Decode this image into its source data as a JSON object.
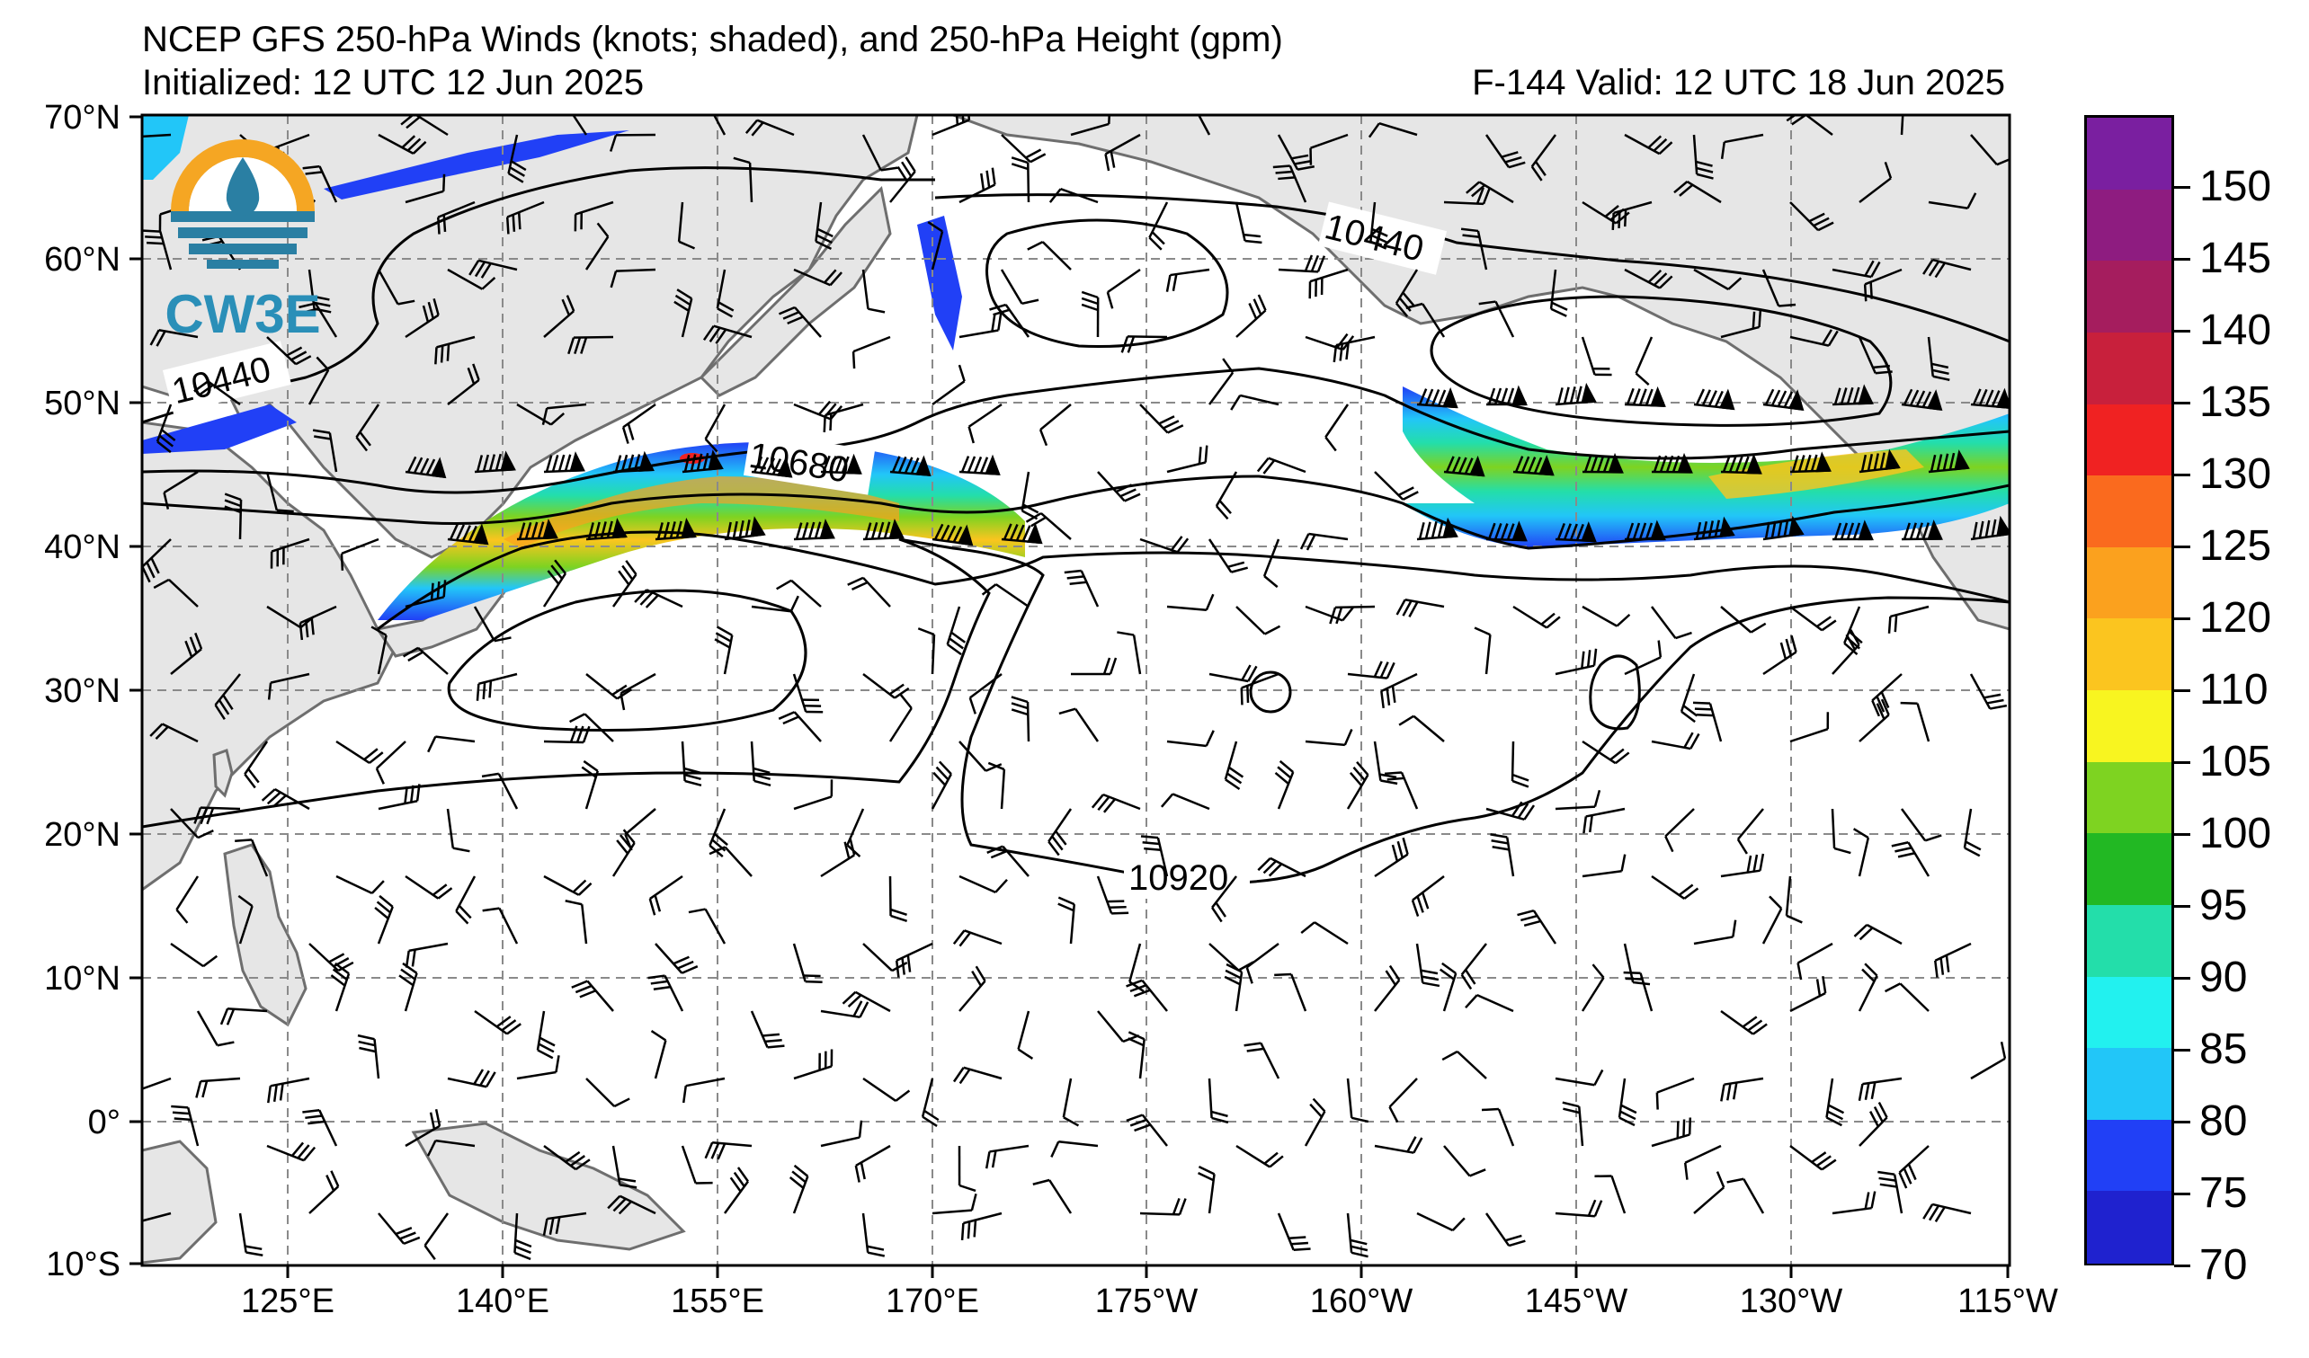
{
  "title": "NCEP GFS 250-hPa Winds (knots; shaded), and 250-hPa Height (gpm)",
  "initialized": "Initialized: 12 UTC 12 Jun 2025",
  "valid": "F-144  Valid: 12 UTC 18 Jun 2025",
  "logo_text": "CW3E",
  "map": {
    "lon_ticks": [
      "125°E",
      "140°E",
      "155°E",
      "170°E",
      "175°W",
      "160°W",
      "145°W",
      "130°W",
      "115°W"
    ],
    "lat_ticks": [
      "70°N",
      "60°N",
      "50°N",
      "40°N",
      "30°N",
      "20°N",
      "10°N",
      "0°",
      "10°S"
    ],
    "contour_labels": [
      "10440",
      "10440",
      "10680",
      "10920"
    ],
    "land_color": "#e6e6e6",
    "coast_color": "#6e6e6e",
    "grid_color": "#8a8a8a"
  },
  "colorbar": {
    "labels": [
      "150",
      "145",
      "140",
      "135",
      "130",
      "125",
      "120",
      "110",
      "105",
      "100",
      "95",
      "90",
      "85",
      "80",
      "75",
      "70"
    ],
    "colors": [
      "#7a1fa0",
      "#8e1c80",
      "#a51d5e",
      "#c8203c",
      "#f02222",
      "#fa6a1e",
      "#fba11e",
      "#fbc51f",
      "#f8f520",
      "#7ed321",
      "#22b823",
      "#23deaa",
      "#22f1ef",
      "#22c6f8",
      "#2140f6",
      "#1f22cf"
    ]
  }
}
